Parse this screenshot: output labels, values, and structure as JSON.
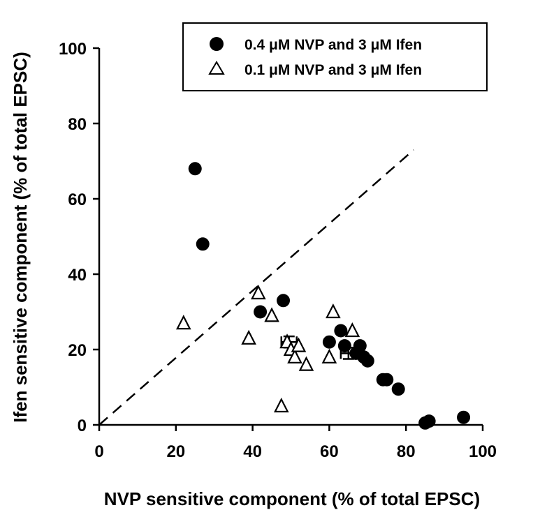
{
  "chart_data": {
    "type": "scatter",
    "title": "",
    "xlabel": "NVP sensitive component (% of total EPSC)",
    "ylabel": "Ifen sensitive component (% of total EPSC)",
    "xlim": [
      0,
      100
    ],
    "ylim": [
      0,
      100
    ],
    "xticks": [
      0,
      20,
      40,
      60,
      80,
      100
    ],
    "yticks": [
      0,
      20,
      40,
      60,
      80,
      100
    ],
    "grid": false,
    "legend_position": "top-right",
    "reference_line": {
      "style": "dashed",
      "x": [
        0,
        82
      ],
      "y": [
        0,
        73
      ]
    },
    "series": [
      {
        "name": "0.4 μM NVP and 3 μM Ifen",
        "marker": "filled-circle",
        "color": "#000000",
        "points": [
          [
            25,
            68
          ],
          [
            27,
            48
          ],
          [
            42,
            30
          ],
          [
            48,
            33
          ],
          [
            60,
            22
          ],
          [
            63,
            25
          ],
          [
            64,
            21
          ],
          [
            67,
            19
          ],
          [
            68,
            21
          ],
          [
            69,
            18
          ],
          [
            70,
            17
          ],
          [
            74,
            12
          ],
          [
            75,
            12
          ],
          [
            78,
            9.5
          ],
          [
            85,
            0.5
          ],
          [
            86,
            1
          ],
          [
            95,
            2
          ]
        ],
        "mean": {
          "x": 65,
          "y": 19,
          "xerr": 2,
          "yerr": 1.5
        }
      },
      {
        "name": "0.1 μM NVP and 3 μM Ifen",
        "marker": "open-triangle",
        "color": "#000000",
        "points": [
          [
            22,
            27
          ],
          [
            39,
            23
          ],
          [
            41.5,
            35
          ],
          [
            45,
            29
          ],
          [
            47.5,
            5
          ],
          [
            49,
            22
          ],
          [
            50,
            20
          ],
          [
            51,
            18
          ],
          [
            52,
            21
          ],
          [
            54,
            16
          ],
          [
            60,
            18
          ],
          [
            61,
            30
          ],
          [
            66,
            25
          ]
        ],
        "mean": {
          "x": 49.5,
          "y": 22,
          "xerr": 2,
          "yerr": 1.5
        }
      }
    ]
  }
}
